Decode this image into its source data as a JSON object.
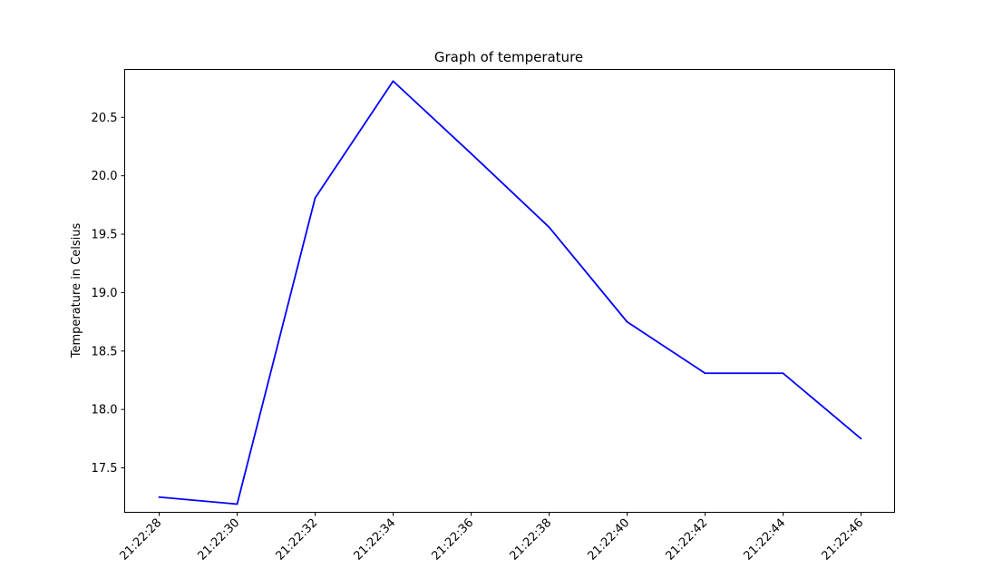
{
  "chart_data": {
    "type": "line",
    "title": "Graph of temperature",
    "xlabel": "",
    "ylabel": "Temperature in Celsius",
    "x_ticks": [
      "21:22:28",
      "21:22:30",
      "21:22:32",
      "21:22:34",
      "21:22:36",
      "21:22:38",
      "21:22:40",
      "21:22:42",
      "21:22:44",
      "21:22:46"
    ],
    "y_ticks": [
      17.5,
      18.0,
      18.5,
      19.0,
      19.5,
      20.0,
      20.5
    ],
    "ylim": [
      17.12,
      20.91
    ],
    "grid": false,
    "line_color": "#0000ff",
    "series": [
      {
        "x": [
          "21:22:28",
          "21:22:30",
          "21:22:32",
          "21:22:34",
          "21:22:36",
          "21:22:38",
          "21:22:40",
          "21:22:42",
          "21:22:44",
          "21:22:46"
        ],
        "values": [
          17.25,
          17.19,
          19.81,
          20.81,
          20.19,
          19.56,
          18.75,
          18.31,
          18.31,
          17.75
        ]
      }
    ]
  }
}
